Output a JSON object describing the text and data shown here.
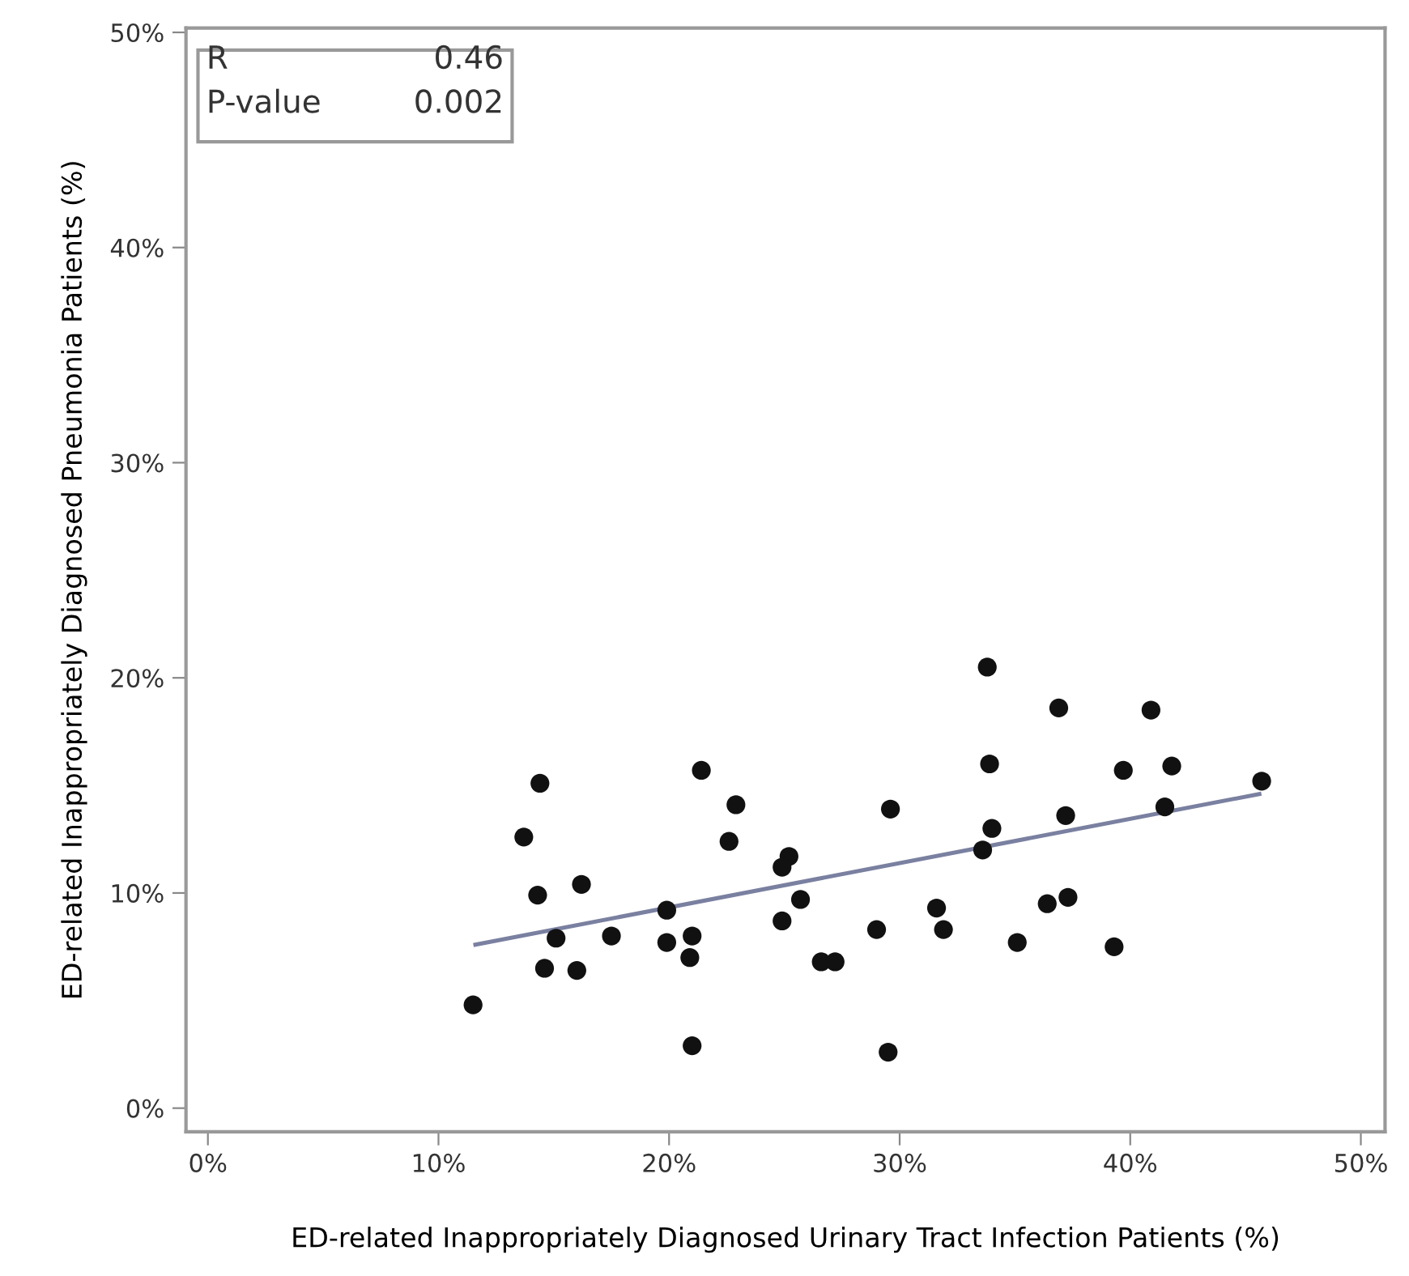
{
  "chart_data": {
    "type": "scatter",
    "xlabel": "ED-related Inappropriately Diagnosed Urinary Tract Infection Patients (%)",
    "ylabel": "ED-related Inappropriately Diagnosed Pneumonia Patients (%)",
    "xlim": [
      -0.95,
      51.05
    ],
    "ylim": [
      -1.1,
      50.2
    ],
    "xticks": [
      {
        "value": 0,
        "label": "0%"
      },
      {
        "value": 10,
        "label": "10%"
      },
      {
        "value": 20,
        "label": "20%"
      },
      {
        "value": 30,
        "label": "30%"
      },
      {
        "value": 40,
        "label": "40%"
      },
      {
        "value": 50,
        "label": "50%"
      }
    ],
    "yticks": [
      {
        "value": 0,
        "label": "0%"
      },
      {
        "value": 10,
        "label": "10%"
      },
      {
        "value": 20,
        "label": "20%"
      },
      {
        "value": 30,
        "label": "30%"
      },
      {
        "value": 40,
        "label": "40%"
      },
      {
        "value": 50,
        "label": "50%"
      }
    ],
    "grid": false,
    "legend": false,
    "annotations": [
      "R",
      "0.46",
      "P-value",
      "0.002"
    ],
    "series": [
      {
        "marker": "circle",
        "color": "#111111",
        "x": [
          11.5,
          14.6,
          16.0,
          15.1,
          14.3,
          16.2,
          13.7,
          14.4,
          17.5,
          19.9,
          19.9,
          21.0,
          20.9,
          21.0,
          21.4,
          22.9,
          22.6,
          25.2,
          24.9,
          25.7,
          24.9,
          26.6,
          27.2,
          29.0,
          29.5,
          29.6,
          31.6,
          31.9,
          33.6,
          34.0,
          33.9,
          33.8,
          36.9,
          37.2,
          35.1,
          36.4,
          37.3,
          39.3,
          39.7,
          40.9,
          41.8,
          41.5,
          45.7
        ],
        "values": [
          4.8,
          6.5,
          6.4,
          7.9,
          9.9,
          10.4,
          12.6,
          15.1,
          8.0,
          9.2,
          7.7,
          8.0,
          7.0,
          2.9,
          15.7,
          14.1,
          12.4,
          11.7,
          11.2,
          9.7,
          8.7,
          6.8,
          6.8,
          8.3,
          2.6,
          13.9,
          9.3,
          8.3,
          12.0,
          13.0,
          16.0,
          20.5,
          18.6,
          13.6,
          7.7,
          9.5,
          9.8,
          7.5,
          15.7,
          18.5,
          15.9,
          14.0,
          15.2
        ]
      },
      {
        "type": "line",
        "color": "#7a80a0",
        "x": [
          11.6,
          45.6
        ],
        "values": [
          7.6,
          14.6
        ],
        "line_style": "solid",
        "marker": "none"
      }
    ]
  }
}
